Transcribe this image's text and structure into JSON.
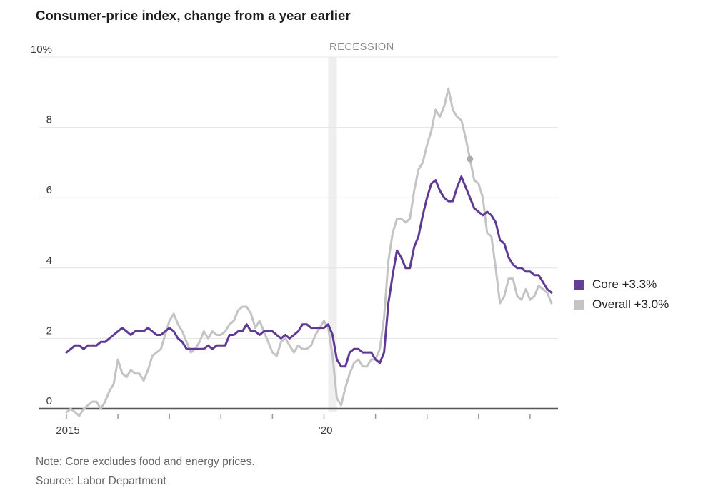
{
  "title": "Consumer-price index, change from a year earlier",
  "recession_label": "RECESSION",
  "note": "Note: Core excludes food and energy prices.",
  "source": "Source: Labor Department",
  "legend": {
    "position": "right",
    "items": [
      {
        "label": "Core +3.3%",
        "color": "#653e99"
      },
      {
        "label": "Overall +3.0%",
        "color": "#c4c4c6"
      }
    ]
  },
  "colors": {
    "core_purple": "#5f3a94",
    "overall_gray": "#c4c4c4",
    "gridline": "#e4e4e4",
    "axis_line": "#555555",
    "tick": "#999999",
    "recession_band": "#efefef",
    "marker_dot": "#ababab",
    "axis_text": "#3c3c3c"
  },
  "chart_data": {
    "type": "line",
    "title": "Consumer-price index, change from a year earlier",
    "x_unit": "month",
    "x_range": [
      "2015-01",
      "2024-06"
    ],
    "x_tick_labels": [
      "2015",
      "",
      "",
      "",
      "",
      "’20",
      "",
      "",
      "",
      ""
    ],
    "y_tick_values": [
      0,
      2,
      4,
      6,
      8,
      10
    ],
    "y_tick_labels": [
      "0",
      "2",
      "4",
      "6",
      "8",
      "10%"
    ],
    "ylim": [
      -0.5,
      10
    ],
    "grid": "horizontal-only",
    "legend_position": "right-of-plot",
    "recession_band_months": [
      61,
      63
    ],
    "marker_point": {
      "series": "Overall",
      "month_index": 94,
      "value": 7.1
    },
    "series": [
      {
        "name": "Overall",
        "color": "#c4c4c4",
        "latest_value": 3.0,
        "values": [
          -0.1,
          0.0,
          -0.1,
          -0.2,
          0.0,
          0.1,
          0.2,
          0.2,
          0.0,
          0.2,
          0.5,
          0.7,
          1.4,
          1.0,
          0.9,
          1.1,
          1.0,
          1.0,
          0.8,
          1.1,
          1.5,
          1.6,
          1.7,
          2.1,
          2.5,
          2.7,
          2.4,
          2.2,
          1.9,
          1.6,
          1.7,
          1.9,
          2.2,
          2.0,
          2.2,
          2.1,
          2.1,
          2.2,
          2.4,
          2.5,
          2.8,
          2.9,
          2.9,
          2.7,
          2.3,
          2.5,
          2.2,
          1.9,
          1.6,
          1.5,
          1.9,
          2.0,
          1.8,
          1.6,
          1.8,
          1.7,
          1.7,
          1.8,
          2.1,
          2.3,
          2.5,
          2.3,
          1.5,
          0.3,
          0.1,
          0.6,
          1.0,
          1.3,
          1.4,
          1.2,
          1.2,
          1.4,
          1.4,
          1.7,
          2.6,
          4.2,
          5.0,
          5.4,
          5.4,
          5.3,
          5.4,
          6.2,
          6.8,
          7.0,
          7.5,
          7.9,
          8.5,
          8.3,
          8.6,
          9.1,
          8.5,
          8.3,
          8.2,
          7.7,
          7.1,
          6.5,
          6.4,
          6.0,
          5.0,
          4.9,
          4.0,
          3.0,
          3.2,
          3.7,
          3.7,
          3.2,
          3.1,
          3.4,
          3.1,
          3.2,
          3.5,
          3.4,
          3.3,
          3.0
        ]
      },
      {
        "name": "Core",
        "color": "#5f3a94",
        "latest_value": 3.3,
        "values": [
          1.6,
          1.7,
          1.8,
          1.8,
          1.7,
          1.8,
          1.8,
          1.8,
          1.9,
          1.9,
          2.0,
          2.1,
          2.2,
          2.3,
          2.2,
          2.1,
          2.2,
          2.2,
          2.2,
          2.3,
          2.2,
          2.1,
          2.1,
          2.2,
          2.3,
          2.2,
          2.0,
          1.9,
          1.7,
          1.7,
          1.7,
          1.7,
          1.7,
          1.8,
          1.7,
          1.8,
          1.8,
          1.8,
          2.1,
          2.1,
          2.2,
          2.2,
          2.4,
          2.2,
          2.2,
          2.1,
          2.2,
          2.2,
          2.2,
          2.1,
          2.0,
          2.1,
          2.0,
          2.1,
          2.2,
          2.4,
          2.4,
          2.3,
          2.3,
          2.3,
          2.3,
          2.4,
          2.1,
          1.4,
          1.2,
          1.2,
          1.6,
          1.7,
          1.7,
          1.6,
          1.6,
          1.6,
          1.4,
          1.3,
          1.6,
          3.0,
          3.8,
          4.5,
          4.3,
          4.0,
          4.0,
          4.6,
          4.9,
          5.5,
          6.0,
          6.4,
          6.5,
          6.2,
          6.0,
          5.9,
          5.9,
          6.3,
          6.6,
          6.3,
          6.0,
          5.7,
          5.6,
          5.5,
          5.6,
          5.5,
          5.3,
          4.8,
          4.7,
          4.3,
          4.1,
          4.0,
          4.0,
          3.9,
          3.9,
          3.8,
          3.8,
          3.6,
          3.4,
          3.3
        ]
      }
    ]
  }
}
